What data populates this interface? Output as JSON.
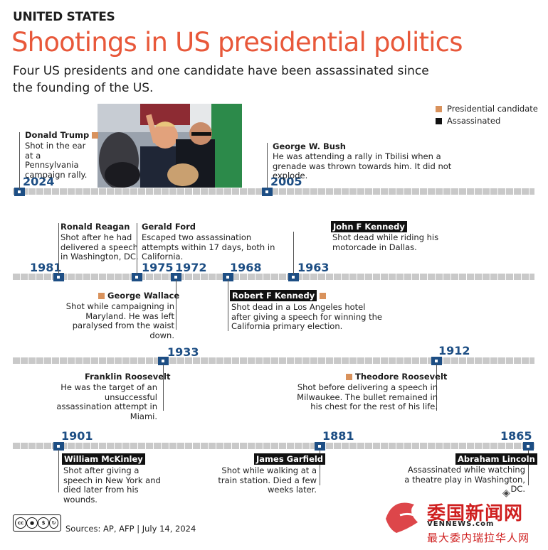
{
  "header": {
    "kicker": "UNITED STATES",
    "title": "Shootings in US presidential politics",
    "subtitle": "Four US presidents and one candidate have been assassinated since the founding of the US."
  },
  "legend": {
    "candidate_label": "Presidential candidate",
    "assassinated_label": "Assassinated",
    "candidate_color": "#d9925c",
    "assassinated_color": "#111111"
  },
  "events": {
    "trump": {
      "year": "2024",
      "name": "Donald Trump",
      "desc": "Shot in the ear at a Pennsylvania campaign rally."
    },
    "bush": {
      "year": "2005",
      "name": "George W. Bush",
      "desc": "He was attending a rally in Tbilisi when a grenade was thrown towards him. It did not explode."
    },
    "reagan": {
      "year": "1981",
      "name": "Ronald Reagan",
      "desc": "Shot after he had delivered a speech in Washington, DC."
    },
    "wallace": {
      "year": "1972",
      "name": "George Wallace",
      "desc": "Shot while campaigning in Maryland. He was left paralysed from the waist down."
    },
    "ford": {
      "year": "1975",
      "name": "Gerald Ford",
      "desc": "Escaped two assassination attempts within 17 days, both in California."
    },
    "rfk": {
      "year": "1968",
      "name": "Robert F Kennedy",
      "desc": "Shot dead in a Los Angeles hotel after giving a speech for winning the California primary election."
    },
    "jfk": {
      "year": "1963",
      "name": "John F Kennedy",
      "desc": "Shot dead while riding his motorcade in Dallas."
    },
    "fdr": {
      "year": "1933",
      "name": "Franklin Roosevelt",
      "desc": "He was the target of an unsuccessful assassination attempt in Miami."
    },
    "teddy": {
      "year": "1912",
      "name": "Theodore Roosevelt",
      "desc": "Shot before delivering a speech in Milwaukee. The bullet remained in his chest for the rest of his life."
    },
    "mckinley": {
      "year": "1901",
      "name": "William McKinley",
      "desc": "Shot after giving a speech in New York and died later from his wounds."
    },
    "garfield": {
      "year": "1881",
      "name": "James Garfield",
      "desc": "Shot while walking at a train station. Died a few weeks later."
    },
    "lincoln": {
      "year": "1865",
      "name": "Abraham Lincoln",
      "desc": "Assassinated while watching a theatre play in Washington, DC."
    }
  },
  "footer": {
    "sources": "Sources:  AP, AFP  |  July 14, 2024",
    "license_icons": [
      "cc",
      "by",
      "nc",
      "sa"
    ]
  },
  "watermark": {
    "brand": "委国新闻网",
    "url": "VENNEWS.com",
    "sub": "最大委内瑞拉华人网"
  }
}
